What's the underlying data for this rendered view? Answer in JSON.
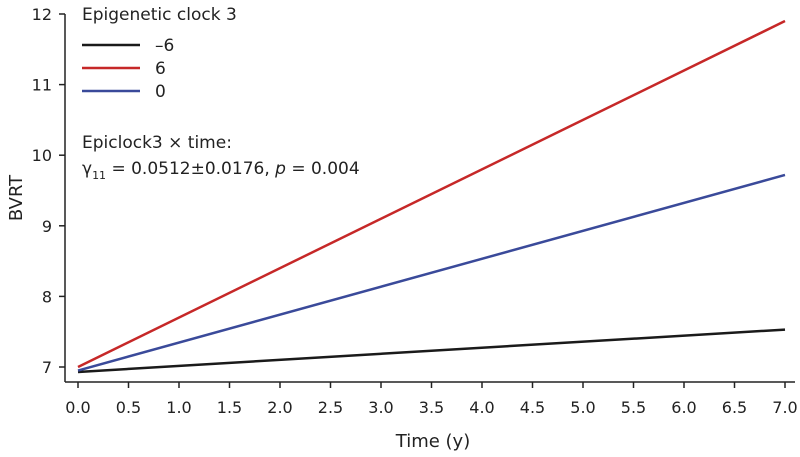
{
  "chart_data": {
    "type": "line",
    "xlabel": "Time (y)",
    "ylabel": "BVRT",
    "xlim": [
      0,
      7
    ],
    "ylim": [
      7,
      12
    ],
    "xticks": [
      "0.0",
      "0.5",
      "1.0",
      "1.5",
      "2.0",
      "2.5",
      "3.0",
      "3.5",
      "4.0",
      "4.5",
      "5.0",
      "5.5",
      "6.0",
      "6.5",
      "7.0"
    ],
    "yticks": [
      "7",
      "8",
      "9",
      "10",
      "11",
      "12"
    ],
    "grid": false,
    "legend": {
      "title": "Epigenetic clock 3",
      "placement": "top-left"
    },
    "series": [
      {
        "name": "–6",
        "color": "#1a1a1a",
        "x": [
          0,
          7
        ],
        "y": [
          6.93,
          7.53
        ]
      },
      {
        "name": "6",
        "color": "#c62828",
        "x": [
          0,
          7
        ],
        "y": [
          7.0,
          11.9
        ]
      },
      {
        "name": "0",
        "color": "#3a4a9a",
        "x": [
          0,
          7
        ],
        "y": [
          6.95,
          9.72
        ]
      }
    ],
    "annotation": {
      "line1": "Epiclock3 × time:",
      "gamma_symbol": "γ",
      "gamma_sub": "11",
      "gamma_value": " = 0.0512±0.0176, ",
      "p_symbol": "p",
      "p_value": " = 0.004"
    }
  }
}
